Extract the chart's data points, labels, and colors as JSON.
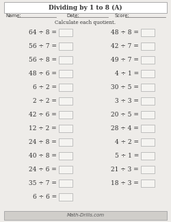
{
  "title": "Dividing by 1 to 8 (A)",
  "subtitle": "Calculate each quotient.",
  "name_label": "Name:",
  "date_label": "Date:",
  "score_label": "Score:",
  "footer": "Math-Drills.com",
  "left_questions": [
    "64 ÷ 8 =",
    "56 ÷ 7 =",
    "56 ÷ 8 =",
    "48 ÷ 6 =",
    "6 ÷ 2 =",
    "2 ÷ 2 =",
    "42 ÷ 6 =",
    "12 ÷ 2 =",
    "24 ÷ 8 =",
    "40 ÷ 8 =",
    "24 ÷ 6 =",
    "35 ÷ 7 =",
    "6 ÷ 6 ="
  ],
  "right_questions": [
    "48 ÷ 8 =",
    "42 ÷ 7 =",
    "49 ÷ 7 =",
    "4 ÷ 1 =",
    "30 ÷ 5 =",
    "3 ÷ 3 =",
    "20 ÷ 5 =",
    "28 ÷ 4 =",
    "4 ÷ 2 =",
    "5 ÷ 1 =",
    "21 ÷ 3 =",
    "18 ÷ 3 ="
  ],
  "bg_color": "#eeece9",
  "box_color": "#f5f4f1",
  "border_color": "#aaaaaa",
  "title_box_color": "#ffffff",
  "footer_box_color": "#d0ceca",
  "text_color": "#333333"
}
